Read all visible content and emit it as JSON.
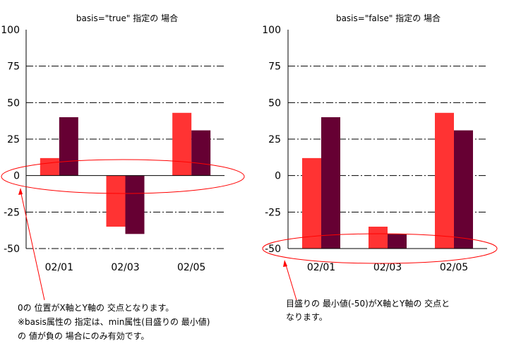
{
  "chart_data": [
    {
      "type": "bar",
      "title": "basis=\"true\" 指定の 場合",
      "categories": [
        "02/01",
        "02/03",
        "02/05"
      ],
      "series": [
        {
          "values": [
            12,
            -35,
            43
          ]
        },
        {
          "values": [
            40,
            -40,
            31
          ]
        }
      ],
      "ylim": [
        -50,
        100
      ],
      "yticks": [
        100,
        75,
        50,
        25,
        0,
        -25,
        -50
      ],
      "basis": 0,
      "grid": true
    },
    {
      "type": "bar",
      "title": "basis=\"false\" 指定の 場合",
      "categories": [
        "02/01",
        "02/03",
        "02/05"
      ],
      "series": [
        {
          "values": [
            12,
            -35,
            43
          ]
        },
        {
          "values": [
            40,
            -40,
            31
          ]
        }
      ],
      "ylim": [
        -50,
        100
      ],
      "yticks": [
        100,
        75,
        50,
        25,
        0,
        -25,
        -50
      ],
      "basis": -50,
      "grid": true
    }
  ],
  "colors": {
    "series1": "#ff3333",
    "series2": "#660033",
    "ellipse": "#ff0000",
    "grid": "#000000"
  },
  "annotations": {
    "left": [
      "0の 位置がX軸とY軸の 交点となります。",
      "※basis属性の 指定は、min属性(目盛りの 最小値)",
      "の 値が負の 場合にのみ有効です。"
    ],
    "right": [
      "目盛りの 最小値(-50)がX軸とY軸の 交点と",
      "なります。"
    ]
  }
}
